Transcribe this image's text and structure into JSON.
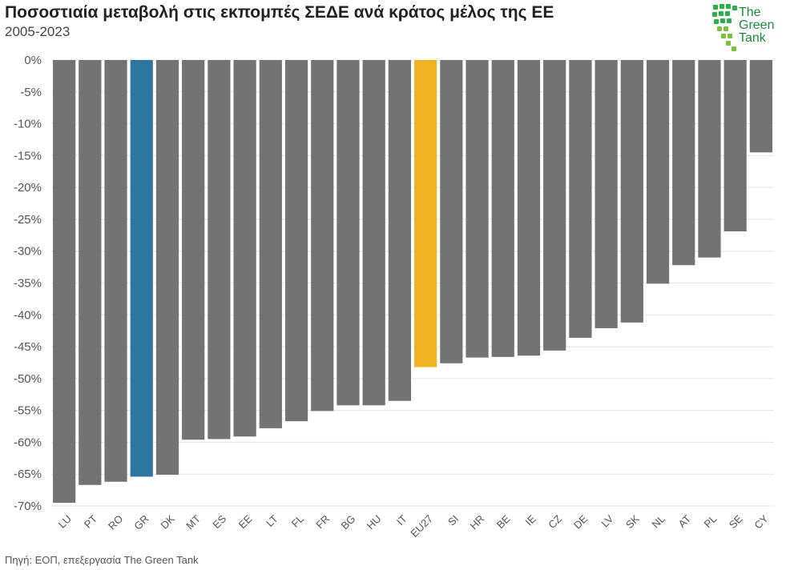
{
  "header": {
    "title": "Ποσοστιαία μεταβολή στις εκπομπές ΣΕΔΕ ανά κράτος μέλος της ΕΕ",
    "subtitle": "2005-2023"
  },
  "footer": {
    "source": "Πηγή: ΕΟΠ, επεξεργασία The Green Tank"
  },
  "logo": {
    "line1": "The",
    "line2": "Green",
    "line3": "Tank",
    "color": "#1e8a3a"
  },
  "chart_data": {
    "type": "bar",
    "title": "Ποσοστιαία μεταβολή στις εκπομπές ΣΕΔΕ ανά κράτος μέλος της ΕΕ",
    "subtitle": "2005-2023",
    "categories": [
      "LU",
      "PT",
      "RO",
      "GR",
      "DK",
      "MT",
      "ES",
      "EE",
      "LT",
      "FL",
      "FR",
      "BG",
      "HU",
      "IT",
      "EU27",
      "SI",
      "HR",
      "BE",
      "IE",
      "CZ",
      "DE",
      "LV",
      "SK",
      "NL",
      "AT",
      "PL",
      "SE",
      "CY"
    ],
    "values": [
      -69.5,
      -66.7,
      -66.2,
      -65.4,
      -65.1,
      -59.6,
      -59.5,
      -59.1,
      -57.8,
      -56.7,
      -55.1,
      -54.2,
      -54.2,
      -53.5,
      -48.2,
      -47.6,
      -46.7,
      -46.6,
      -46.4,
      -45.6,
      -43.6,
      -42.1,
      -41.2,
      -35.1,
      -32.2,
      -31.0,
      -26.9,
      -14.5
    ],
    "ylim": [
      -70,
      0
    ],
    "yticks": [
      0,
      -5,
      -10,
      -15,
      -20,
      -25,
      -30,
      -35,
      -40,
      -45,
      -50,
      -55,
      -60,
      -65,
      -70
    ],
    "ytick_suffix": "%",
    "grid": true,
    "colors": {
      "default": "#737373",
      "GR": "#2e75a0",
      "EU27": "#f0b323"
    }
  }
}
